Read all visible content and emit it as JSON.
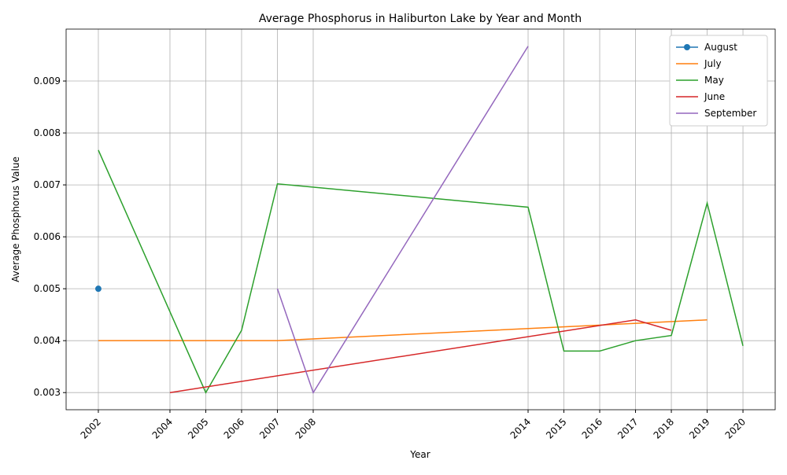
{
  "chart_data": {
    "type": "line",
    "title": "Average Phosphorus in Haliburton Lake by Year and Month",
    "x_label": "Year",
    "y_label": "Average Phosphorus Value",
    "xlim": [
      2001.1,
      2020.9
    ],
    "ylim": [
      0.00267,
      0.01
    ],
    "xticks": [
      2002,
      2004,
      2005,
      2006,
      2007,
      2008,
      2014,
      2015,
      2016,
      2017,
      2018,
      2019,
      2020
    ],
    "yticks": [
      0.003,
      0.004,
      0.005,
      0.006,
      0.007,
      0.008,
      0.009
    ],
    "grid": true,
    "legend": "upper-right",
    "series": [
      {
        "name": "August",
        "color": "#1f77b4",
        "marker": true,
        "x": [
          2002
        ],
        "values": [
          0.005
        ]
      },
      {
        "name": "July",
        "color": "#ff7f0e",
        "x": [
          2002,
          2007,
          2019
        ],
        "values": [
          0.004,
          0.004,
          0.0044
        ]
      },
      {
        "name": "May",
        "color": "#2ca02c",
        "x": [
          2002,
          2005,
          2006,
          2007,
          2014,
          2015,
          2016,
          2017,
          2018,
          2019,
          2020
        ],
        "values": [
          0.00767,
          0.003,
          0.0042,
          0.00702,
          0.00657,
          0.0038,
          0.0038,
          0.004,
          0.0041,
          0.00665,
          0.0039
        ]
      },
      {
        "name": "June",
        "color": "#d62728",
        "x": [
          2004,
          2017,
          2018
        ],
        "values": [
          0.003,
          0.0044,
          0.0042
        ]
      },
      {
        "name": "September",
        "color": "#9467bd",
        "x": [
          2007,
          2008,
          2014
        ],
        "values": [
          0.005,
          0.003,
          0.00967
        ]
      }
    ]
  }
}
